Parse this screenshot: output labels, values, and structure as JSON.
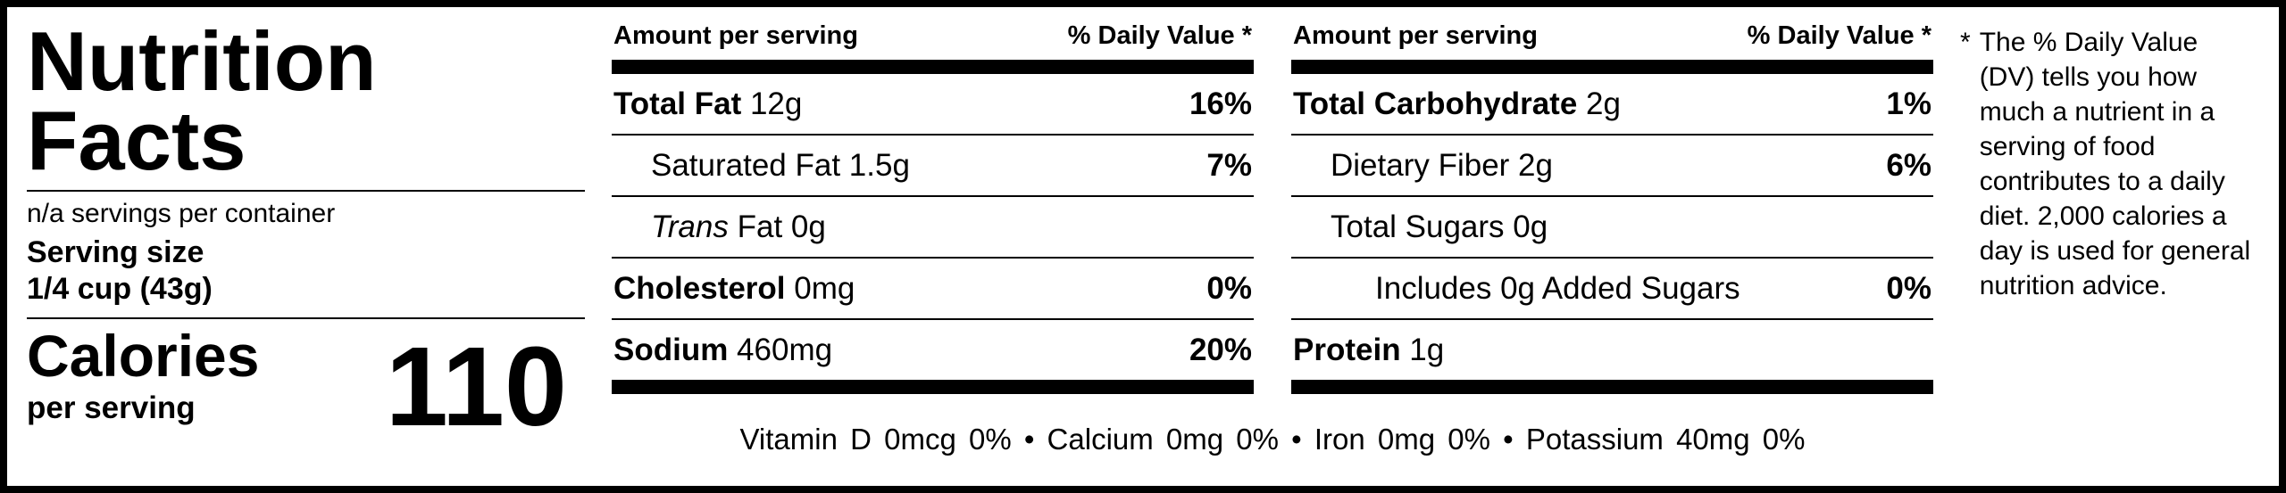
{
  "left": {
    "title_line1": "Nutrition",
    "title_line2": "Facts",
    "servings": "n/a servings per container",
    "serving_size_label": "Serving size",
    "serving_size_value": "1/4 cup (43g)",
    "calories_label": "Calories",
    "calories_sublabel": "per serving",
    "calories_value": "110"
  },
  "col1": {
    "header_left": "Amount per serving",
    "header_right": "% Daily Value *",
    "rows": [
      {
        "bold": "Total Fat",
        "rest": " 12g",
        "dv": "16%"
      },
      {
        "plain": "Saturated Fat 1.5g",
        "dv": "7%"
      },
      {
        "italic": "Trans",
        "rest": " Fat 0g",
        "dv": ""
      },
      {
        "bold": "Cholesterol",
        "rest": " 0mg",
        "dv": "0%"
      },
      {
        "bold": "Sodium",
        "rest": " 460mg",
        "dv": "20%"
      }
    ]
  },
  "col2": {
    "header_left": "Amount per serving",
    "header_right": "% Daily Value *",
    "rows": [
      {
        "bold": "Total Carbohydrate",
        "rest": " 2g",
        "dv": "1%"
      },
      {
        "plain": "Dietary Fiber 2g",
        "dv": "6%"
      },
      {
        "plain": "Total Sugars 0g",
        "dv": ""
      },
      {
        "plain": "Includes 0g Added Sugars",
        "dv": "0%"
      },
      {
        "bold": "Protein",
        "rest": " 1g",
        "dv": ""
      }
    ]
  },
  "micronutrients": "Vitamin D 0mcg 0% • Calcium 0mg 0% • Iron 0mg 0% • Potassium 40mg 0%",
  "footnote": {
    "marker": "*",
    "text": "The % Daily Value (DV) tells you how much a nutrient in a serving of food contributes to a daily diet. 2,000 calories a day is used for general nutrition advice."
  }
}
